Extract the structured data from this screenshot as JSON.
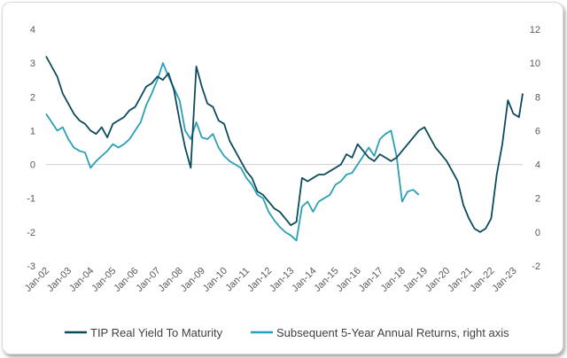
{
  "chart_data": {
    "type": "line",
    "title": "",
    "xlabel": "",
    "ylabel": "",
    "x_ticks": [
      "Jan-02",
      "Jan-03",
      "Jan-04",
      "Jan-05",
      "Jan-06",
      "Jan-07",
      "Jan-08",
      "Jan-09",
      "Jan-10",
      "Jan-11",
      "Jan-12",
      "Jan-13",
      "Jan-14",
      "Jan-15",
      "Jan-16",
      "Jan-17",
      "Jan-18",
      "Jan-19",
      "Jan-20",
      "Jan-21",
      "Jan-22",
      "Jan-23"
    ],
    "x_range": [
      "2002-01",
      "2023-06"
    ],
    "y_left": {
      "ticks": [
        "-3",
        "-2",
        "-1",
        "0",
        "1",
        "2",
        "3",
        "4"
      ],
      "min": -3,
      "max": 4
    },
    "y_right": {
      "ticks": [
        "-2",
        "0",
        "2",
        "4",
        "6",
        "8",
        "10",
        "12"
      ],
      "min": -2,
      "max": 12
    },
    "grid": false,
    "legend_position": "bottom",
    "series": [
      {
        "name": "TIP Real Yield To Maturity",
        "axis": "left",
        "color": "#0d4a5c",
        "points": [
          [
            "2002-01",
            3.2
          ],
          [
            "2002-04",
            2.9
          ],
          [
            "2002-07",
            2.6
          ],
          [
            "2002-10",
            2.1
          ],
          [
            "2003-01",
            1.8
          ],
          [
            "2003-04",
            1.5
          ],
          [
            "2003-07",
            1.3
          ],
          [
            "2003-10",
            1.2
          ],
          [
            "2004-01",
            1.0
          ],
          [
            "2004-04",
            0.9
          ],
          [
            "2004-07",
            1.1
          ],
          [
            "2004-10",
            0.8
          ],
          [
            "2005-01",
            1.2
          ],
          [
            "2005-04",
            1.3
          ],
          [
            "2005-07",
            1.4
          ],
          [
            "2005-10",
            1.6
          ],
          [
            "2006-01",
            1.7
          ],
          [
            "2006-04",
            2.0
          ],
          [
            "2006-07",
            2.3
          ],
          [
            "2006-10",
            2.4
          ],
          [
            "2007-01",
            2.6
          ],
          [
            "2007-04",
            2.5
          ],
          [
            "2007-07",
            2.7
          ],
          [
            "2007-10",
            2.2
          ],
          [
            "2008-01",
            1.3
          ],
          [
            "2008-04",
            0.5
          ],
          [
            "2008-07",
            -0.1
          ],
          [
            "2008-10",
            2.9
          ],
          [
            "2009-01",
            2.3
          ],
          [
            "2009-04",
            1.8
          ],
          [
            "2009-07",
            1.7
          ],
          [
            "2009-10",
            1.3
          ],
          [
            "2010-01",
            1.2
          ],
          [
            "2010-04",
            0.7
          ],
          [
            "2010-07",
            0.4
          ],
          [
            "2010-10",
            0.1
          ],
          [
            "2011-01",
            -0.2
          ],
          [
            "2011-04",
            -0.4
          ],
          [
            "2011-07",
            -0.8
          ],
          [
            "2011-10",
            -0.9
          ],
          [
            "2012-01",
            -1.1
          ],
          [
            "2012-04",
            -1.3
          ],
          [
            "2012-07",
            -1.4
          ],
          [
            "2012-10",
            -1.6
          ],
          [
            "2013-01",
            -1.8
          ],
          [
            "2013-04",
            -1.7
          ],
          [
            "2013-07",
            -0.4
          ],
          [
            "2013-10",
            -0.5
          ],
          [
            "2014-01",
            -0.4
          ],
          [
            "2014-04",
            -0.3
          ],
          [
            "2014-07",
            -0.3
          ],
          [
            "2014-10",
            -0.2
          ],
          [
            "2015-01",
            -0.1
          ],
          [
            "2015-04",
            0.0
          ],
          [
            "2015-07",
            0.3
          ],
          [
            "2015-10",
            0.2
          ],
          [
            "2016-01",
            0.6
          ],
          [
            "2016-04",
            0.4
          ],
          [
            "2016-07",
            0.2
          ],
          [
            "2016-10",
            0.1
          ],
          [
            "2017-01",
            0.3
          ],
          [
            "2017-04",
            0.2
          ],
          [
            "2017-07",
            0.1
          ],
          [
            "2017-10",
            0.2
          ],
          [
            "2018-01",
            0.4
          ],
          [
            "2018-04",
            0.6
          ],
          [
            "2018-07",
            0.8
          ],
          [
            "2018-10",
            1.0
          ],
          [
            "2019-01",
            1.1
          ],
          [
            "2019-04",
            0.8
          ],
          [
            "2019-07",
            0.5
          ],
          [
            "2019-10",
            0.3
          ],
          [
            "2020-01",
            0.1
          ],
          [
            "2020-04",
            -0.2
          ],
          [
            "2020-07",
            -0.5
          ],
          [
            "2020-10",
            -1.2
          ],
          [
            "2021-01",
            -1.6
          ],
          [
            "2021-04",
            -1.9
          ],
          [
            "2021-07",
            -2.0
          ],
          [
            "2021-10",
            -1.9
          ],
          [
            "2022-01",
            -1.6
          ],
          [
            "2022-04",
            -0.3
          ],
          [
            "2022-07",
            0.6
          ],
          [
            "2022-10",
            1.9
          ],
          [
            "2023-01",
            1.5
          ],
          [
            "2023-04",
            1.4
          ],
          [
            "2023-06",
            2.1
          ]
        ]
      },
      {
        "name": "Subsequent 5-Year Annual Returns, right axis",
        "axis": "right",
        "color": "#2a9fb5",
        "points": [
          [
            "2002-01",
            7.0
          ],
          [
            "2002-04",
            6.5
          ],
          [
            "2002-07",
            6.0
          ],
          [
            "2002-10",
            6.2
          ],
          [
            "2003-01",
            5.5
          ],
          [
            "2003-04",
            5.0
          ],
          [
            "2003-07",
            4.8
          ],
          [
            "2003-10",
            4.7
          ],
          [
            "2004-01",
            3.8
          ],
          [
            "2004-04",
            4.2
          ],
          [
            "2004-07",
            4.5
          ],
          [
            "2004-10",
            4.8
          ],
          [
            "2005-01",
            5.2
          ],
          [
            "2005-04",
            5.0
          ],
          [
            "2005-07",
            5.2
          ],
          [
            "2005-10",
            5.5
          ],
          [
            "2006-01",
            6.0
          ],
          [
            "2006-04",
            6.5
          ],
          [
            "2006-07",
            7.5
          ],
          [
            "2006-10",
            8.2
          ],
          [
            "2007-01",
            9.0
          ],
          [
            "2007-04",
            10.0
          ],
          [
            "2007-07",
            9.2
          ],
          [
            "2007-10",
            8.5
          ],
          [
            "2008-01",
            7.8
          ],
          [
            "2008-04",
            6.0
          ],
          [
            "2008-07",
            5.5
          ],
          [
            "2008-10",
            6.5
          ],
          [
            "2009-01",
            5.6
          ],
          [
            "2009-04",
            5.5
          ],
          [
            "2009-07",
            5.8
          ],
          [
            "2009-10",
            5.0
          ],
          [
            "2010-01",
            4.5
          ],
          [
            "2010-04",
            4.2
          ],
          [
            "2010-07",
            4.0
          ],
          [
            "2010-10",
            3.8
          ],
          [
            "2011-01",
            3.2
          ],
          [
            "2011-04",
            2.8
          ],
          [
            "2011-07",
            2.2
          ],
          [
            "2011-10",
            2.0
          ],
          [
            "2012-01",
            1.2
          ],
          [
            "2012-04",
            0.7
          ],
          [
            "2012-07",
            0.3
          ],
          [
            "2012-10",
            0.0
          ],
          [
            "2013-01",
            -0.2
          ],
          [
            "2013-04",
            -0.5
          ],
          [
            "2013-07",
            1.5
          ],
          [
            "2013-10",
            1.8
          ],
          [
            "2014-01",
            1.2
          ],
          [
            "2014-04",
            1.8
          ],
          [
            "2014-07",
            2.0
          ],
          [
            "2014-10",
            2.2
          ],
          [
            "2015-01",
            2.8
          ],
          [
            "2015-04",
            3.0
          ],
          [
            "2015-07",
            3.4
          ],
          [
            "2015-10",
            3.5
          ],
          [
            "2016-01",
            4.0
          ],
          [
            "2016-04",
            4.5
          ],
          [
            "2016-07",
            5.0
          ],
          [
            "2016-10",
            4.5
          ],
          [
            "2017-01",
            5.5
          ],
          [
            "2017-04",
            5.8
          ],
          [
            "2017-07",
            6.0
          ],
          [
            "2017-10",
            4.5
          ],
          [
            "2018-01",
            1.8
          ],
          [
            "2018-04",
            2.4
          ],
          [
            "2018-07",
            2.5
          ],
          [
            "2018-10",
            2.2
          ]
        ]
      }
    ]
  }
}
